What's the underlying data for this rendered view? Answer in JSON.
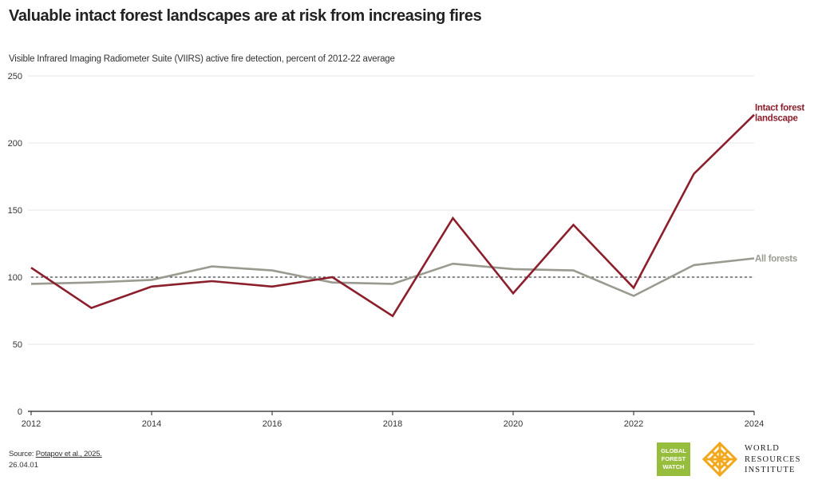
{
  "title": "Valuable intact forest landscapes are at risk from increasing fires",
  "subtitle": "Visible Infrared Imaging Radiometer Suite (VIIRS) active fire detection, percent of 2012-22 average",
  "footer": {
    "source_label": "Source:",
    "source_link": "Potapov et al., 2025.",
    "code": "26.04.01"
  },
  "logos": {
    "gfw": [
      "GLOBAL",
      "FOREST",
      "WATCH"
    ],
    "wri": [
      "WORLD",
      "RESOURCES",
      "INSTITUTE"
    ]
  },
  "chart_data": {
    "type": "line",
    "x": [
      2012,
      2013,
      2014,
      2015,
      2016,
      2017,
      2018,
      2019,
      2020,
      2021,
      2022,
      2023,
      2024
    ],
    "series": [
      {
        "name": "Intact forest landscape",
        "color": "#8b1f2b",
        "values": [
          107,
          77,
          93,
          97,
          93,
          100,
          71,
          144,
          88,
          139,
          92,
          177,
          221
        ]
      },
      {
        "name": "All forests",
        "color": "#9a9a90",
        "values": [
          95,
          96,
          98,
          108,
          105,
          96,
          95,
          110,
          106,
          105,
          86,
          109,
          114
        ]
      }
    ],
    "reference_line": 100,
    "xticks": [
      2012,
      2014,
      2016,
      2018,
      2020,
      2022,
      2024
    ],
    "yticks": [
      0,
      50,
      100,
      150,
      200,
      250
    ],
    "xlim": [
      2012,
      2024
    ],
    "ylim": [
      0,
      250
    ],
    "grid": "horizontal",
    "legend": "direct labels at line ends"
  }
}
